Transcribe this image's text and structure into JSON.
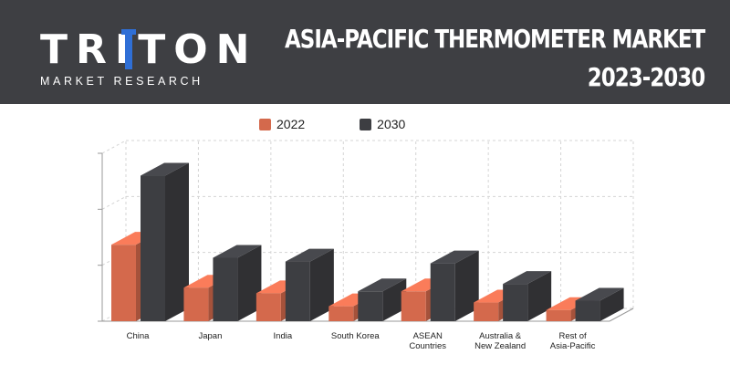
{
  "header": {
    "logo_word": "TRITON",
    "logo_tagline": "MARKET RESEARCH",
    "title_line1": "ASIA-PACIFIC THERMOMETER MARKET",
    "title_line2": "2023-2030"
  },
  "colors": {
    "header_bg": "#3e3f43",
    "series_2022": "#d4694c",
    "series_2030": "#3d3e42",
    "logo_accent": "#2f6fd6"
  },
  "chart_data": {
    "type": "bar",
    "title": "ASIA-PACIFIC THERMOMETER MARKET 2023-2030",
    "categories": [
      "China",
      "Japan",
      "India",
      "South Korea",
      "ASEAN Countries",
      "Australia & New Zealand",
      "Rest of Asia-Pacific"
    ],
    "category_lines": [
      [
        "China"
      ],
      [
        "Japan"
      ],
      [
        "India"
      ],
      [
        "South Korea"
      ],
      [
        "ASEAN",
        "Countries"
      ],
      [
        "Australia &",
        "New Zealand"
      ],
      [
        "Rest of",
        "Asia-Pacific"
      ]
    ],
    "series": [
      {
        "name": "2022",
        "values": [
          41,
          18,
          15,
          8,
          16,
          10,
          6
        ]
      },
      {
        "name": "2030",
        "values": [
          78,
          34,
          32,
          16,
          31,
          20,
          11
        ]
      }
    ],
    "ylim": [
      0,
      90
    ],
    "grid": true,
    "legend": "top-center",
    "three_d": true
  }
}
